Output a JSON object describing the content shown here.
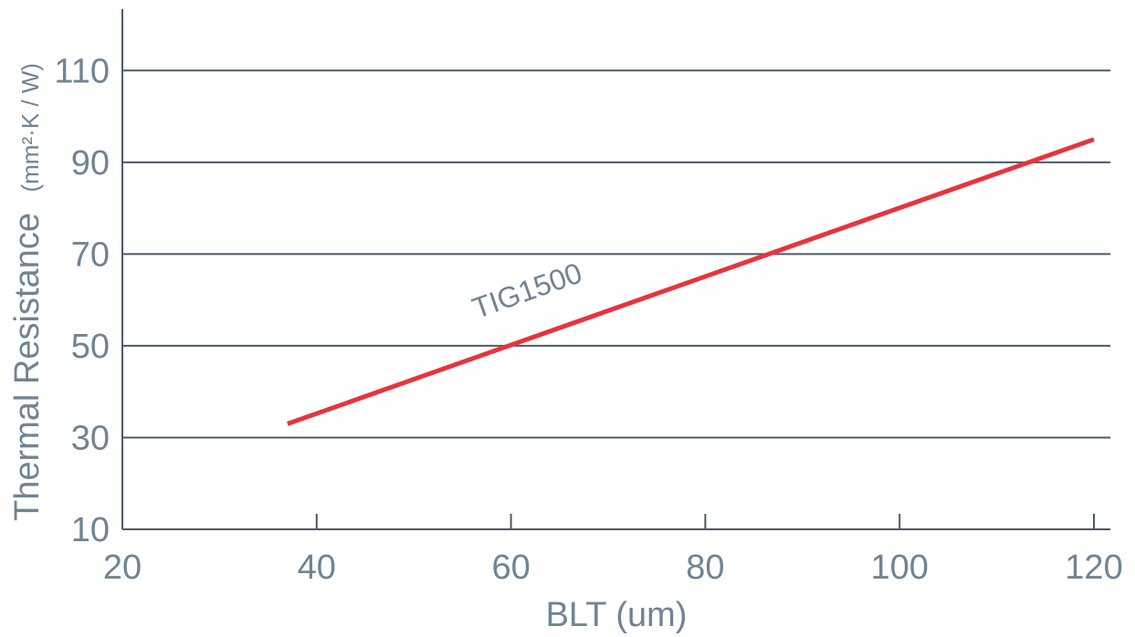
{
  "chart_data": {
    "type": "line",
    "xlabel": "BLT (um)",
    "ylabel": "Thermal Resistance",
    "ylabel_unit": "(mm²·K / W)",
    "xlim": [
      20,
      120
    ],
    "ylim": [
      10,
      120
    ],
    "x_ticks": [
      20,
      40,
      60,
      80,
      100,
      120
    ],
    "y_ticks": [
      10,
      30,
      50,
      70,
      90,
      110
    ],
    "grid": "horizontal",
    "series": [
      {
        "name": "TIG1500",
        "color": "#e8343c",
        "x": [
          37,
          120
        ],
        "y": [
          33,
          95
        ]
      }
    ],
    "annotations": [
      {
        "text": "TIG1500",
        "series": "TIG1500",
        "x": 62,
        "y": 60
      }
    ],
    "colors": {
      "text": "#6f8494",
      "grid": "#4a5a68"
    }
  }
}
